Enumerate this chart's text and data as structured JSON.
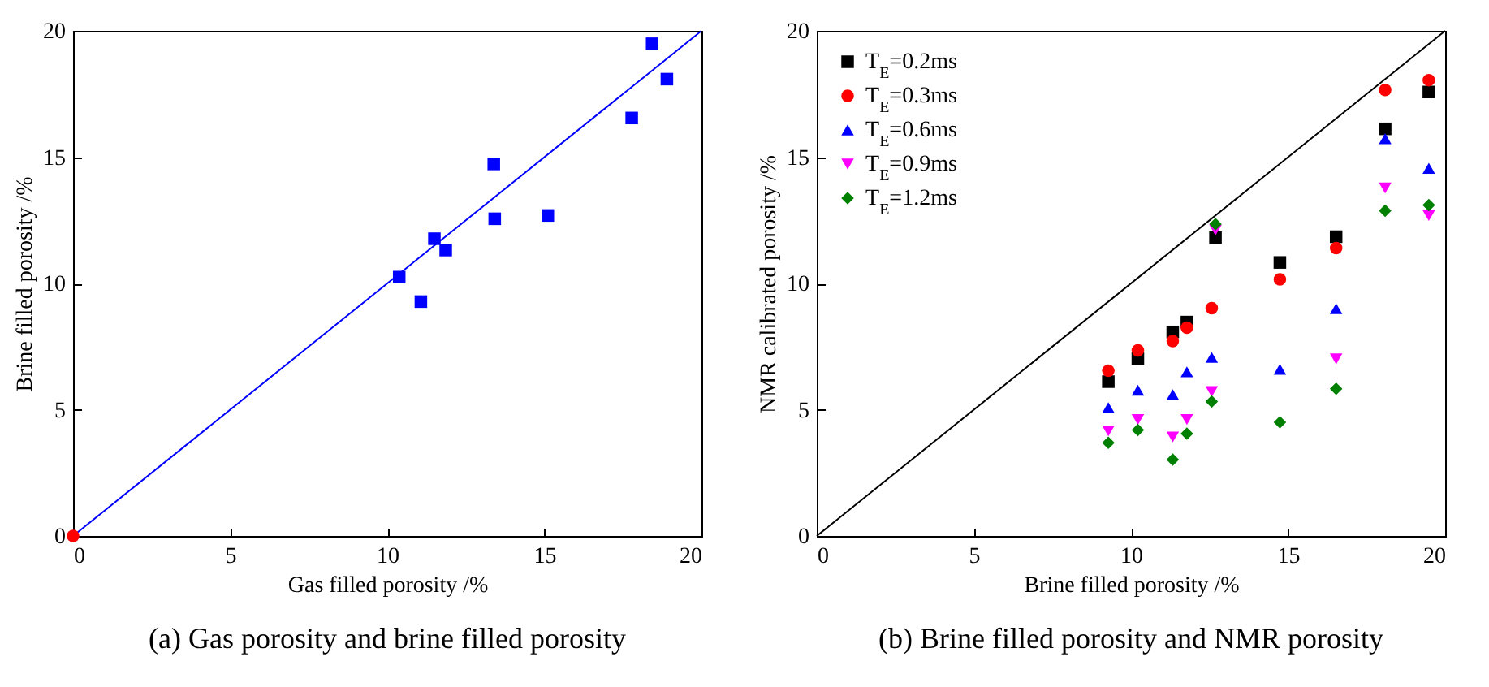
{
  "chart_data": [
    {
      "type": "scatter",
      "title": "(a)  Gas porosity and brine filled porosity",
      "xlabel": "Gas filled porosity /%",
      "ylabel": "Brine filled porosity /%",
      "xlim": [
        0,
        20
      ],
      "ylim": [
        0,
        20
      ],
      "xticks": [
        0,
        5,
        10,
        15,
        20
      ],
      "yticks": [
        0,
        5,
        10,
        15,
        20
      ],
      "grid": false,
      "legend": false,
      "series": [
        {
          "type": "line",
          "color": "#0000ff",
          "x": [
            0,
            20
          ],
          "values": [
            0,
            20
          ]
        },
        {
          "color": "#0000ff",
          "marker": "square",
          "x": [
            10.38,
            11.07,
            11.5,
            11.86,
            13.39,
            13.42,
            15.11,
            17.78,
            18.43,
            18.9
          ],
          "values": [
            10.25,
            9.28,
            11.77,
            11.32,
            14.73,
            12.56,
            12.69,
            16.55,
            19.49,
            18.09
          ]
        },
        {
          "color": "#ff0000",
          "marker": "circle",
          "x": [
            0
          ],
          "values": [
            0
          ]
        }
      ]
    },
    {
      "type": "scatter",
      "title": "(b)  Brine filled porosity and NMR porosity",
      "xlabel": "Brine filled porosity /%",
      "ylabel": "NMR calibrated porosity /%",
      "xlim": [
        0,
        20
      ],
      "ylim": [
        0,
        20
      ],
      "xticks": [
        0,
        5,
        10,
        15,
        20
      ],
      "yticks": [
        0,
        5,
        10,
        15,
        20
      ],
      "grid": false,
      "legend": "top left",
      "x": [
        9.28,
        10.22,
        11.33,
        11.78,
        12.57,
        12.69,
        14.74,
        16.53,
        18.09,
        19.48
      ],
      "series": [
        {
          "type": "line",
          "color": "#000000",
          "x": [
            0,
            20
          ],
          "values": [
            0,
            20
          ]
        },
        {
          "name": "T$_{E}$=0.2ms",
          "color": "#000000",
          "marker": "square",
          "values": [
            6.11,
            7.03,
            8.08,
            8.47,
            null,
            11.81,
            10.83,
            11.85,
            16.12,
            17.58
          ]
        },
        {
          "name": "T$_{E}$=0.3ms",
          "color": "#ff0000",
          "marker": "circle",
          "values": [
            6.54,
            7.35,
            7.72,
            8.25,
            9.02,
            null,
            10.16,
            11.4,
            17.66,
            18.05
          ]
        },
        {
          "name": "T$_{E}$=0.6ms",
          "color": "#0000ff",
          "marker": "triangle",
          "values": [
            5.08,
            5.77,
            5.6,
            6.5,
            7.07,
            null,
            6.6,
            9.0,
            15.73,
            14.56
          ]
        },
        {
          "name": "T$_{E}$=0.9ms",
          "color": "#ff00ff",
          "marker": "triangle-down",
          "values": [
            4.16,
            4.61,
            3.92,
            4.61,
            5.72,
            12.11,
            null,
            7.01,
            13.78,
            12.69
          ]
        },
        {
          "name": "T$_{E}$=1.2ms",
          "color": "#008000",
          "marker": "diamond",
          "values": [
            3.69,
            4.2,
            3.02,
            4.05,
            5.32,
            12.35,
            4.5,
            5.83,
            12.88,
            13.1
          ]
        }
      ]
    }
  ]
}
